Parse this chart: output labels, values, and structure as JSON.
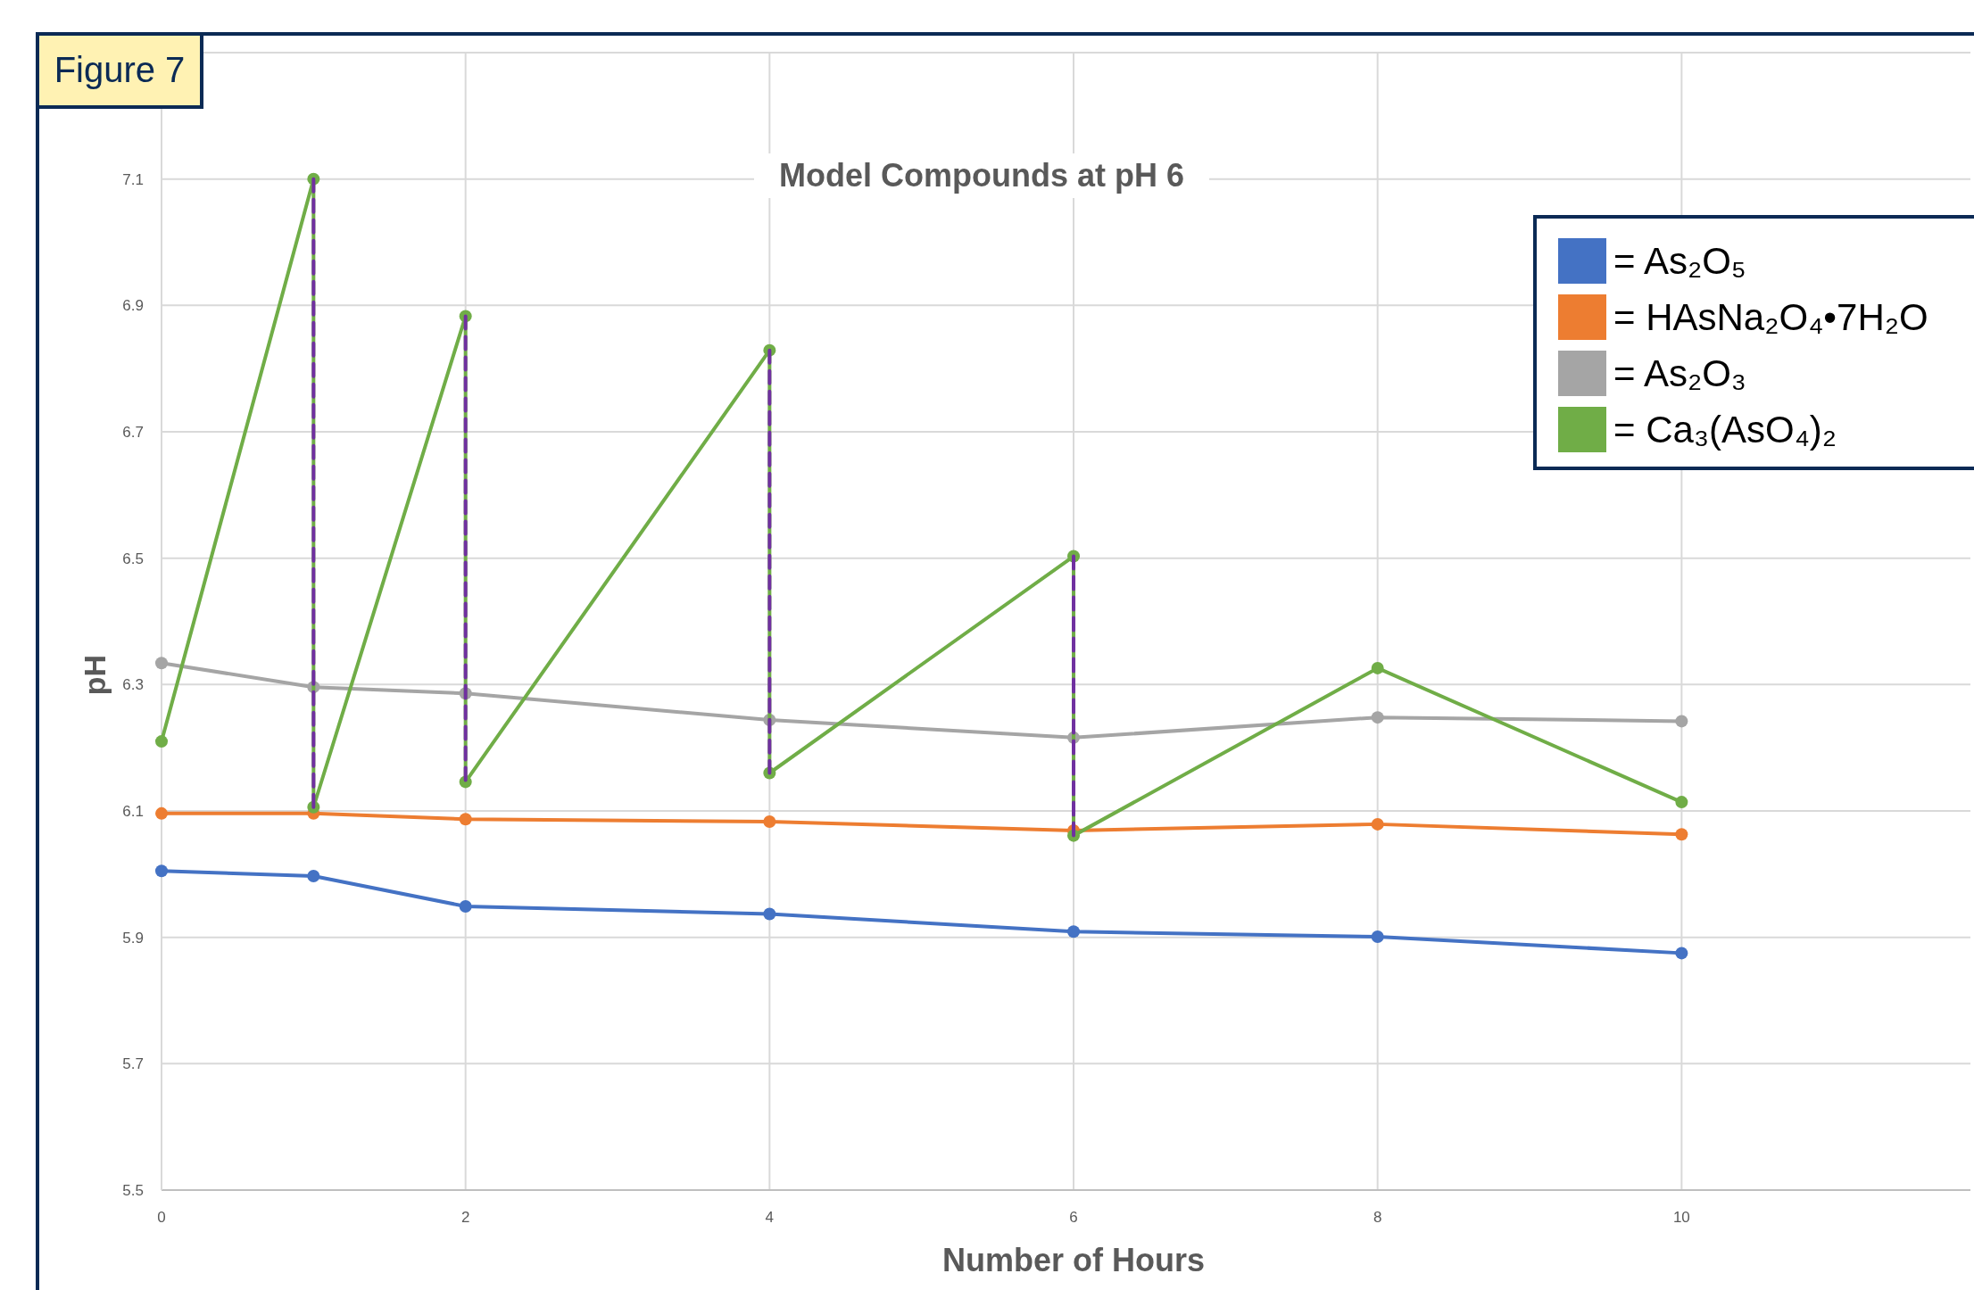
{
  "chart_data": {
    "type": "line",
    "title": "Model Compounds at pH 6",
    "xlabel": "Number of Hours",
    "ylabel": "pH",
    "annotations": [
      "Figure 7"
    ],
    "xlim": [
      0,
      11.9
    ],
    "xticks": [
      0,
      2,
      4,
      6,
      8,
      10
    ],
    "ylim": [
      5.5,
      7.3
    ],
    "yticks": [
      5.5,
      5.7,
      5.9,
      6.1,
      6.3,
      6.5,
      6.7,
      6.9,
      7.1,
      {
        "value": 7.3,
        "label": null
      }
    ],
    "grid": true,
    "legend": "top right",
    "marker": "circle",
    "line_style": "solid",
    "series": [
      {
        "name": "= As₂O₅",
        "color": "#4472c4",
        "x": [
          0,
          1,
          2,
          4,
          6,
          8,
          10
        ],
        "values": [
          6.005,
          5.997,
          5.949,
          5.937,
          5.909,
          5.901,
          5.875
        ]
      },
      {
        "name": "= HAsNa₂O₄•7H₂O",
        "color": "#ed7d31",
        "x": [
          0,
          1,
          2,
          4,
          6,
          8,
          10
        ],
        "values": [
          6.096,
          6.096,
          6.087,
          6.083,
          6.069,
          6.079,
          6.063
        ]
      },
      {
        "name": "= As₂O₃",
        "color": "#a5a5a5",
        "x": [
          0,
          1,
          2,
          4,
          6,
          8,
          10
        ],
        "values": [
          6.334,
          6.296,
          6.286,
          6.244,
          6.216,
          6.248,
          6.242
        ]
      },
      {
        "name": "= Ca₃(AsO₄)₂",
        "color": "#70ad47",
        "x": [
          0,
          1,
          1,
          2,
          2,
          4,
          4,
          6,
          6,
          8,
          10
        ],
        "values": [
          6.21,
          7.1,
          6.106,
          6.883,
          6.146,
          6.829,
          6.16,
          6.503,
          6.061,
          6.326,
          6.114
        ]
      },
      {
        "color": "#7030a0",
        "line_style": "dashed",
        "marker": "none",
        "x": [
          1,
          1
        ],
        "values": [
          7.1,
          6.106
        ]
      },
      {
        "color": "#7030a0",
        "line_style": "dashed",
        "marker": "none",
        "x": [
          2,
          2
        ],
        "values": [
          6.883,
          6.146
        ]
      },
      {
        "color": "#7030a0",
        "line_style": "dashed",
        "marker": "none",
        "x": [
          4,
          4
        ],
        "values": [
          6.829,
          6.16
        ]
      },
      {
        "color": "#7030a0",
        "line_style": "dashed",
        "marker": "none",
        "x": [
          6,
          6
        ],
        "values": [
          6.503,
          6.061
        ]
      }
    ]
  }
}
